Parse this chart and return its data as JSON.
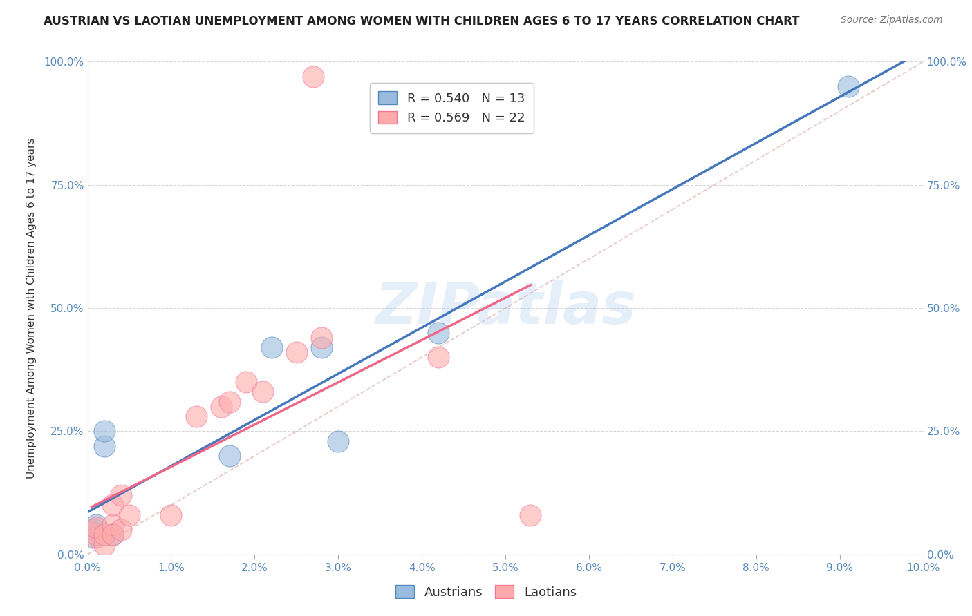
{
  "title": "AUSTRIAN VS LAOTIAN UNEMPLOYMENT AMONG WOMEN WITH CHILDREN AGES 6 TO 17 YEARS CORRELATION CHART",
  "source": "Source: ZipAtlas.com",
  "ylabel": "Unemployment Among Women with Children Ages 6 to 17 years",
  "xlim": [
    0.0,
    0.1
  ],
  "ylim": [
    0.0,
    1.0
  ],
  "xticks": [
    0.0,
    0.01,
    0.02,
    0.03,
    0.04,
    0.05,
    0.06,
    0.07,
    0.08,
    0.09,
    0.1
  ],
  "yticks": [
    0.0,
    0.25,
    0.5,
    0.75,
    1.0
  ],
  "xticklabels": [
    "0.0%",
    "1.0%",
    "2.0%",
    "3.0%",
    "4.0%",
    "5.0%",
    "6.0%",
    "7.0%",
    "8.0%",
    "9.0%",
    "10.0%"
  ],
  "yticklabels_left": [
    "0.0%",
    "25.0%",
    "50.0%",
    "75.0%",
    "100.0%"
  ],
  "yticklabels_right": [
    "0.0%",
    "25.0%",
    "50.0%",
    "75.0%",
    "100.0%"
  ],
  "austrians_R": "0.540",
  "austrians_N": "13",
  "laotians_R": "0.569",
  "laotians_N": "22",
  "blue_color": "#99BBDD",
  "pink_color": "#FFAAAA",
  "blue_edge_color": "#5588BB",
  "pink_edge_color": "#EE7799",
  "blue_line_color": "#4477BB",
  "pink_line_color": "#EE6688",
  "ref_line_color": "#DDAAAA",
  "background_color": "#FFFFFF",
  "watermark": "ZIPatlas",
  "austrians_x": [
    0.0005,
    0.0008,
    0.001,
    0.001,
    0.002,
    0.002,
    0.003,
    0.017,
    0.022,
    0.028,
    0.03,
    0.042,
    0.091
  ],
  "austrians_y": [
    0.035,
    0.05,
    0.04,
    0.06,
    0.22,
    0.25,
    0.04,
    0.2,
    0.42,
    0.42,
    0.23,
    0.45,
    0.95
  ],
  "laotians_x": [
    0.0005,
    0.001,
    0.001,
    0.002,
    0.002,
    0.003,
    0.003,
    0.003,
    0.004,
    0.004,
    0.005,
    0.01,
    0.013,
    0.016,
    0.017,
    0.019,
    0.021,
    0.025,
    0.027,
    0.028,
    0.042,
    0.053
  ],
  "laotians_y": [
    0.045,
    0.035,
    0.055,
    0.02,
    0.04,
    0.06,
    0.1,
    0.04,
    0.12,
    0.05,
    0.08,
    0.08,
    0.28,
    0.3,
    0.31,
    0.35,
    0.33,
    0.41,
    0.97,
    0.44,
    0.4,
    0.08
  ],
  "title_fontsize": 12,
  "source_fontsize": 10,
  "label_fontsize": 11,
  "tick_fontsize": 11,
  "legend_fontsize": 13,
  "watermark_fontsize": 60,
  "watermark_color": "#AACCEE",
  "watermark_alpha": 0.3,
  "blue_line_slope": 8.5,
  "blue_line_intercept": 0.08,
  "pink_line_slope": 18.0,
  "pink_line_intercept": 0.02
}
